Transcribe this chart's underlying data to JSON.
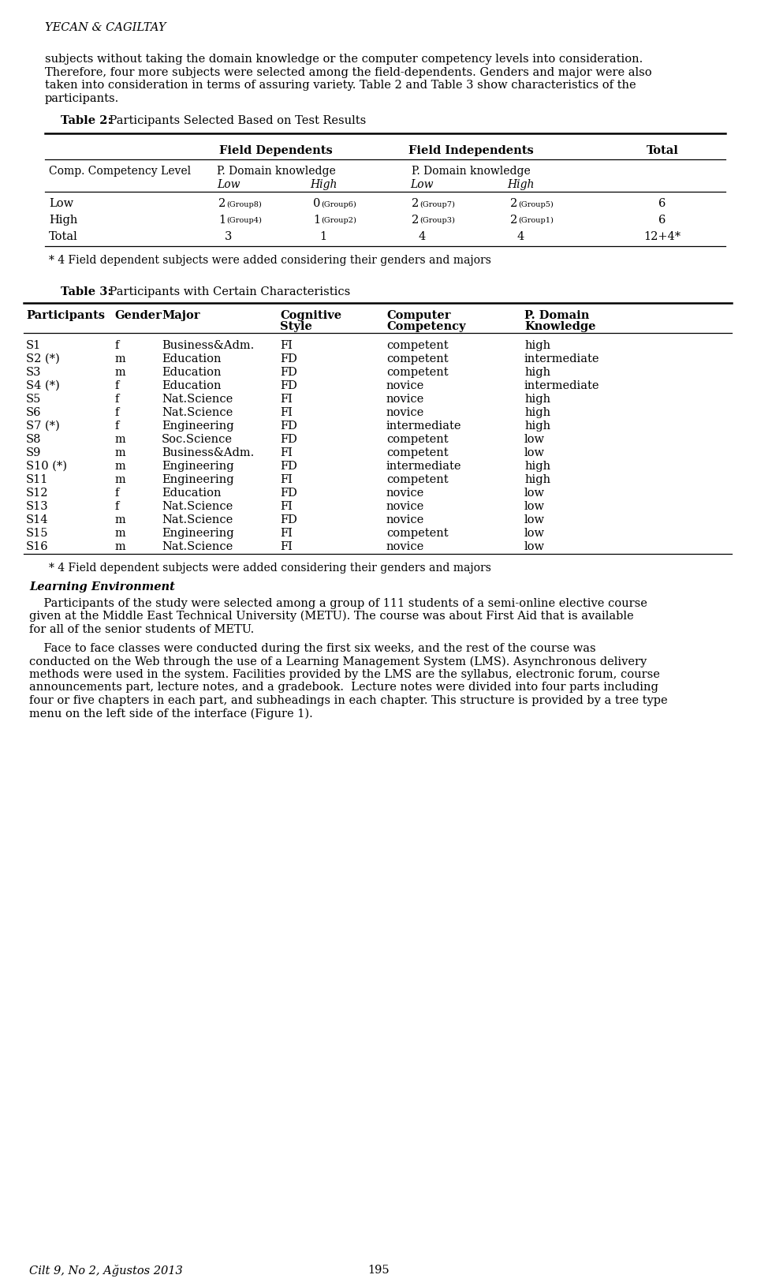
{
  "bg_color": "#ffffff",
  "page_width": 9.6,
  "page_height": 16.31,
  "header": "YECAN & CAGILTAY",
  "intro_text": [
    "subjects without taking the domain knowledge or the computer competency levels into consideration.",
    "Therefore, four more subjects were selected among the field-dependents. Genders and major were also",
    "taken into consideration in terms of assuring variety. Table 2 and Table 3 show characteristics of the",
    "participants."
  ],
  "table2_title_bold": "Table 2:",
  "table2_title_rest": " Participants Selected Based on Test Results",
  "table2_footnote": "* 4 Field dependent subjects were added considering their genders and majors",
  "table2_rows": [
    [
      "Low",
      "2",
      "(Group8)",
      "0",
      "(Group6)",
      "2",
      "(Group7)",
      "2",
      "(Group5)",
      "6"
    ],
    [
      "High",
      "1",
      "(Group4)",
      "1",
      "(Group2)",
      "2",
      "(Group3)",
      "2",
      "(Group1)",
      "6"
    ],
    [
      "Total",
      "3",
      "",
      "1",
      "",
      "4",
      "",
      "4",
      "",
      "12+4*"
    ]
  ],
  "table3_title_bold": "Table 3:",
  "table3_title_rest": " Participants with Certain Characteristics",
  "table3_col_headers": [
    "Participants",
    "Gender",
    "Major",
    "Cognitive\nStyle",
    "Computer\nCompetency",
    "P. Domain\nKnowledge"
  ],
  "table3_rows": [
    [
      "S1",
      "f",
      "Business&Adm.",
      "FI",
      "competent",
      "high"
    ],
    [
      "S2 (*)",
      "m",
      "Education",
      "FD",
      "competent",
      "intermediate"
    ],
    [
      "S3",
      "m",
      "Education",
      "FD",
      "competent",
      "high"
    ],
    [
      "S4 (*)",
      "f",
      "Education",
      "FD",
      "novice",
      "intermediate"
    ],
    [
      "S5",
      "f",
      "Nat.Science",
      "FI",
      "novice",
      "high"
    ],
    [
      "S6",
      "f",
      "Nat.Science",
      "FI",
      "novice",
      "high"
    ],
    [
      "S7 (*)",
      "f",
      "Engineering",
      "FD",
      "intermediate",
      "high"
    ],
    [
      "S8",
      "m",
      "Soc.Science",
      "FD",
      "competent",
      "low"
    ],
    [
      "S9",
      "m",
      "Business&Adm.",
      "FI",
      "competent",
      "low"
    ],
    [
      "S10 (*)",
      "m",
      "Engineering",
      "FD",
      "intermediate",
      "high"
    ],
    [
      "S11",
      "m",
      "Engineering",
      "FI",
      "competent",
      "high"
    ],
    [
      "S12",
      "f",
      "Education",
      "FD",
      "novice",
      "low"
    ],
    [
      "S13",
      "f",
      "Nat.Science",
      "FI",
      "novice",
      "low"
    ],
    [
      "S14",
      "m",
      "Nat.Science",
      "FD",
      "novice",
      "low"
    ],
    [
      "S15",
      "m",
      "Engineering",
      "FI",
      "competent",
      "low"
    ],
    [
      "S16",
      "m",
      "Nat.Science",
      "FI",
      "novice",
      "low"
    ]
  ],
  "table3_footnote": "* 4 Field dependent subjects were added considering their genders and majors",
  "section_heading": "Learning Environment",
  "paragraph1": [
    "    Participants of the study were selected among a group of 111 students of a semi-online elective course",
    "given at the Middle East Technical University (METU). The course was about First Aid that is available",
    "for all of the senior students of METU."
  ],
  "paragraph2": [
    "    Face to face classes were conducted during the first six weeks, and the rest of the course was",
    "conducted on the Web through the use of a Learning Management System (LMS). Asynchronous delivery",
    "methods were used in the system. Facilities provided by the LMS are the syllabus, electronic forum, course",
    "announcements part, lecture notes, and a gradebook.  Lecture notes were divided into four parts including",
    "four or five chapters in each part, and subheadings in each chapter. This structure is provided by a tree type",
    "menu on the left side of the interface (Figure 1)."
  ],
  "footer_center": "195",
  "footer_left": "Cilt 9, No 2, Ağustos 2013"
}
